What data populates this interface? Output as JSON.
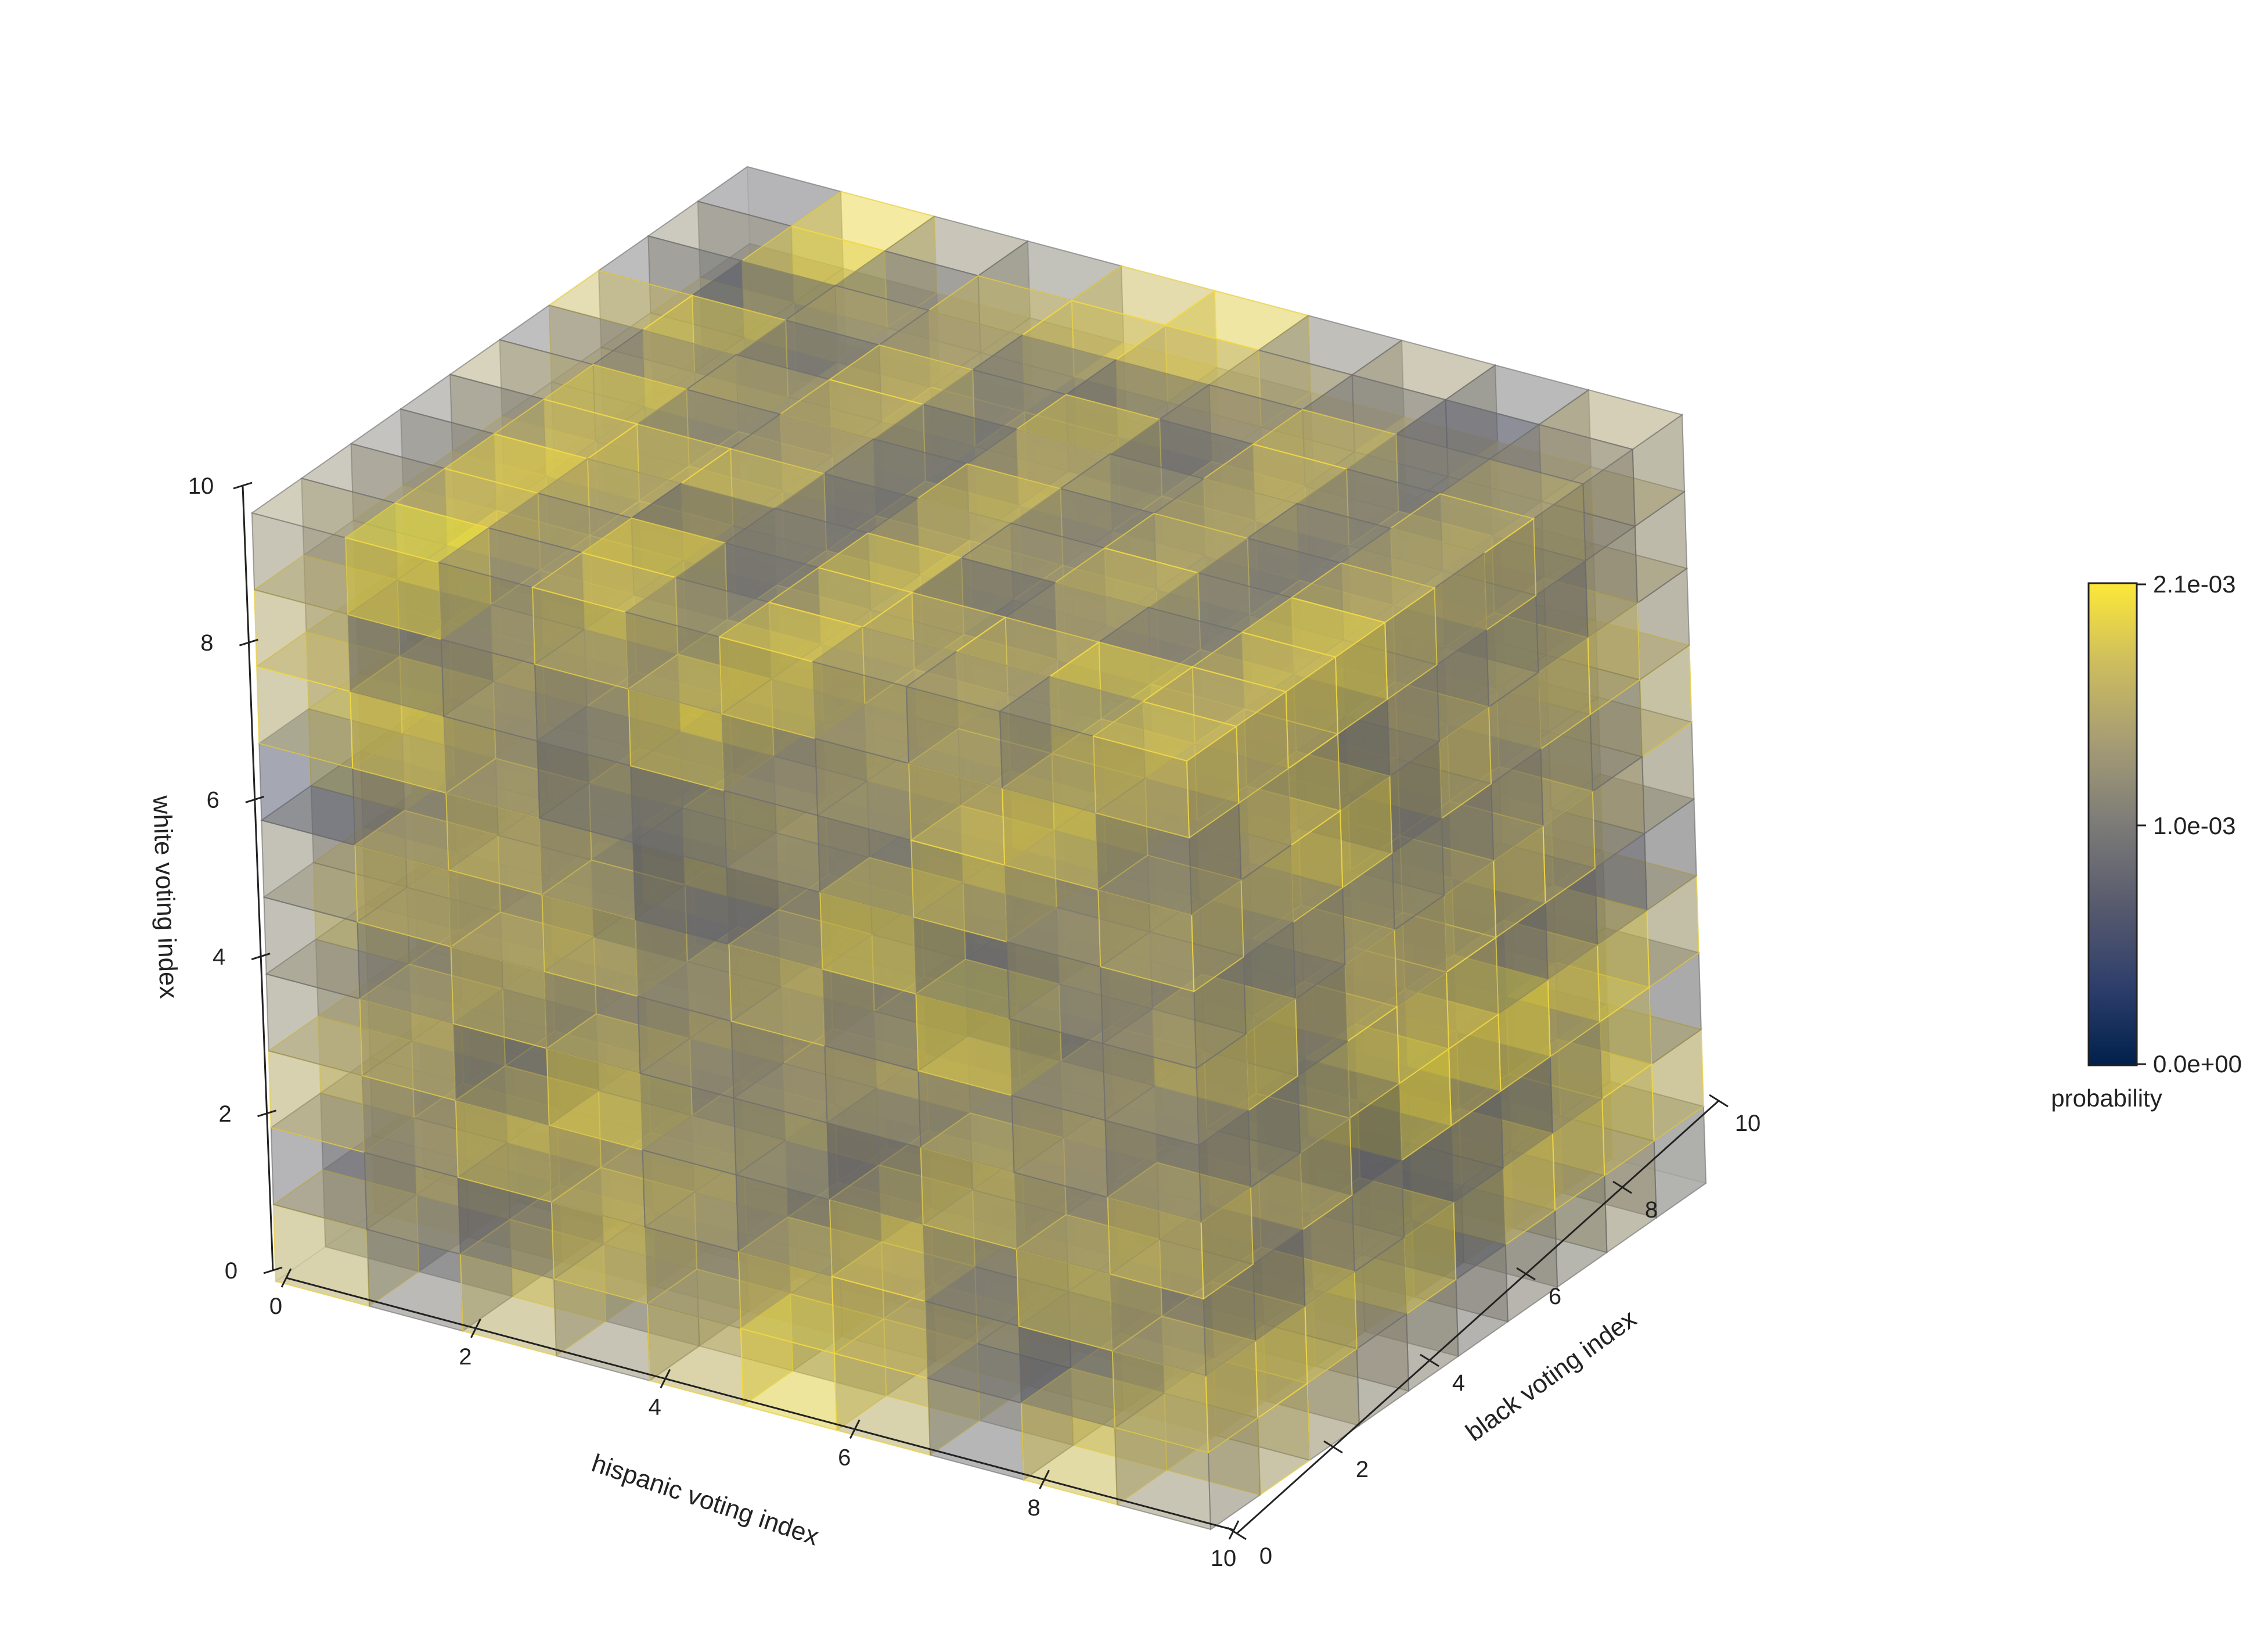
{
  "chart_data": {
    "type": "3d-voxel",
    "axes": {
      "x": {
        "label": "hispanic voting index",
        "ticks": [
          "0",
          "2",
          "4",
          "6",
          "8",
          "10"
        ],
        "range": [
          0,
          10
        ]
      },
      "y": {
        "label": "black voting index",
        "ticks": [
          "0",
          "2",
          "4",
          "6",
          "8",
          "10"
        ],
        "range": [
          0,
          10
        ]
      },
      "z": {
        "label": "white voting index",
        "ticks": [
          "0",
          "2",
          "4",
          "6",
          "8",
          "10"
        ],
        "range": [
          0,
          10
        ]
      }
    },
    "grid": true,
    "colorbar": {
      "label": "probability",
      "ticks": [
        "2.1e-03",
        "1.0e-03",
        "0.0e+00"
      ],
      "tick_values": [
        0.0021,
        0.001,
        0.0
      ],
      "range": [
        0.0,
        0.0021
      ],
      "colormap": "cividis",
      "colors": [
        "#00204c",
        "#2f3f6b",
        "#585b6e",
        "#7c7b78",
        "#a59c74",
        "#cdbd5e",
        "#fde838"
      ]
    },
    "voxel_grid": {
      "size": [
        10,
        10,
        10
      ],
      "alpha": 0.45
    },
    "voxel_values": [
      [
        0.0019,
        0.0012,
        0.0006,
        0.0015,
        0.0018,
        0.0011,
        0.0016,
        0.0009,
        0.0013,
        0.0018
      ],
      [
        0.0016,
        0.0009,
        0.0014,
        0.002,
        0.0012,
        0.0017,
        0.001,
        0.0015,
        0.0012,
        0.0019
      ],
      [
        0.0008,
        0.0015,
        0.0017,
        0.0011,
        0.0019,
        0.0013,
        0.0014,
        0.0008,
        0.0016,
        0.0012
      ],
      [
        0.0013,
        0.0018,
        0.001,
        0.0016,
        0.0014,
        0.002,
        0.0011,
        0.0017,
        0.0009,
        0.0015
      ],
      [
        0.0017,
        0.0011,
        0.0019,
        0.0009,
        0.0016,
        0.0012,
        0.0018,
        0.0013,
        0.0015,
        0.001
      ],
      [
        0.0021,
        0.0014,
        0.0012,
        0.0018,
        0.001,
        0.0016,
        0.0013,
        0.0019,
        0.0011,
        0.0014
      ],
      [
        0.0015,
        0.001,
        0.0016,
        0.0013,
        0.0017,
        0.0009,
        0.0015,
        0.0012,
        0.0018,
        0.0016
      ],
      [
        0.0011,
        0.0017,
        0.0013,
        0.0015,
        0.0012,
        0.0018,
        0.001,
        0.0016,
        0.0014,
        0.0019
      ],
      [
        0.0014,
        0.0012,
        0.0018,
        0.001,
        0.0019,
        0.0014,
        0.0017,
        0.0011,
        0.0013,
        0.0015
      ],
      [
        0.0016,
        0.0019,
        0.0011,
        0.0017,
        0.0013,
        0.001,
        0.0015,
        0.0018,
        0.0012,
        0.0017
      ]
    ]
  }
}
